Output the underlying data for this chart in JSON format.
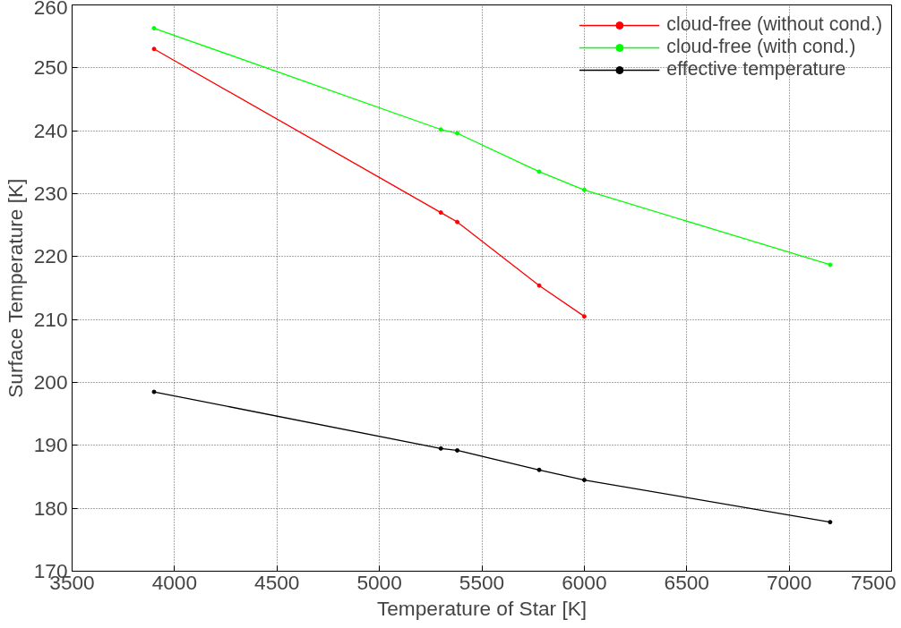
{
  "chart_data": {
    "type": "line",
    "xlabel": "Temperature of Star [K]",
    "ylabel": "Surface Temperature [K]",
    "x": [
      3900,
      5300,
      5380,
      5780,
      6000,
      7200
    ],
    "series": [
      {
        "name": "cloud-free (without cond.)",
        "color": "#ff0000",
        "values": [
          253.0,
          227.0,
          225.5,
          215.4,
          210.5,
          null
        ]
      },
      {
        "name": "cloud-free (with cond.)",
        "color": "#00ff00",
        "values": [
          256.3,
          240.2,
          239.6,
          233.5,
          230.6,
          218.7
        ]
      },
      {
        "name": "effective temperature",
        "color": "#000000",
        "values": [
          198.5,
          189.5,
          189.2,
          186.1,
          184.5,
          177.8
        ]
      }
    ],
    "xlim": [
      3500,
      7500
    ],
    "ylim": [
      170,
      260
    ],
    "xticks": [
      3500,
      4000,
      4500,
      5000,
      5500,
      6000,
      6500,
      7000,
      7500
    ],
    "yticks": [
      170,
      180,
      190,
      200,
      210,
      220,
      230,
      240,
      250,
      260
    ],
    "grid": true,
    "legend": "top right",
    "marker": "circle",
    "line_style": "solid"
  }
}
